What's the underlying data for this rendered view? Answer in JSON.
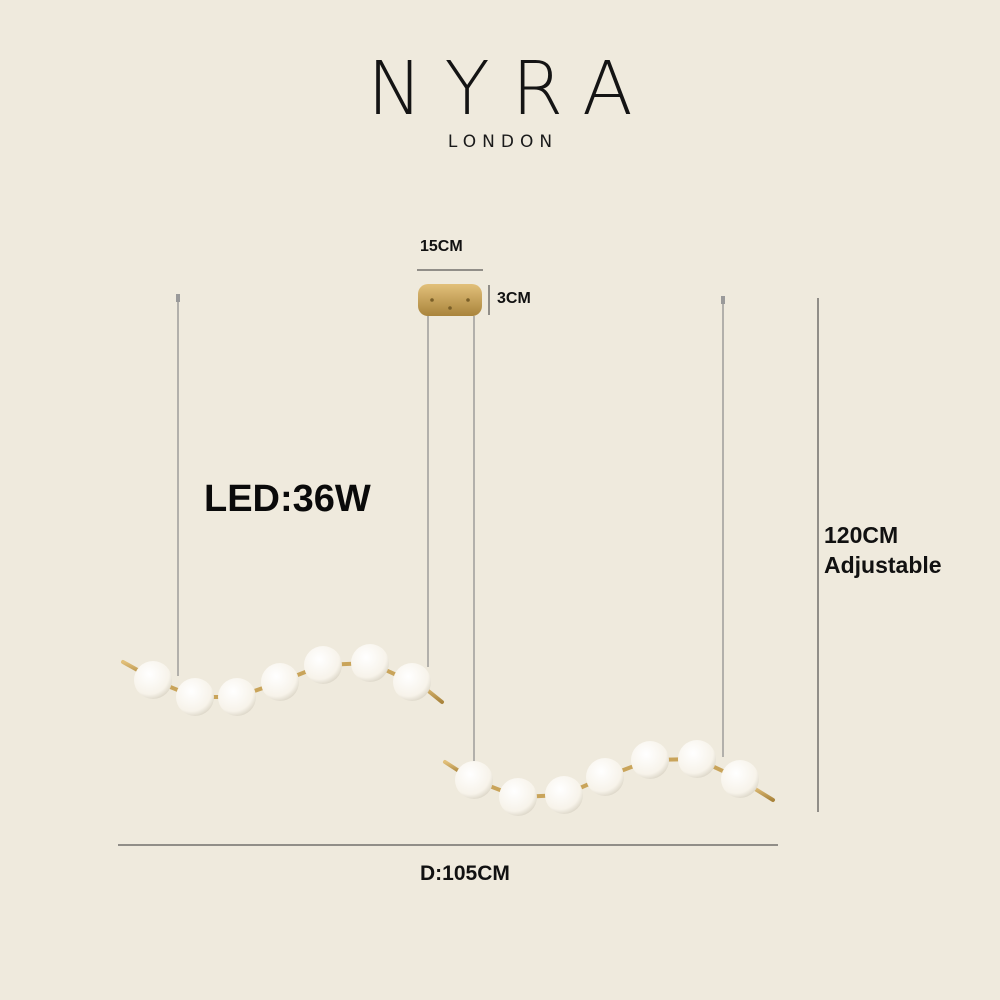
{
  "brand": {
    "name": "NYRA",
    "location": "LONDON"
  },
  "specs": {
    "canopy_width": "15CM",
    "canopy_height": "3CM",
    "power": "LED:36W",
    "height_value": "120CM",
    "height_note": "Adjustable",
    "length": "D:105CM"
  },
  "colors": {
    "background": "#efeadd",
    "brass": "#c9a45a",
    "globe": "#fbf8f1",
    "cable": "#8a8a8a",
    "text": "#111111"
  }
}
